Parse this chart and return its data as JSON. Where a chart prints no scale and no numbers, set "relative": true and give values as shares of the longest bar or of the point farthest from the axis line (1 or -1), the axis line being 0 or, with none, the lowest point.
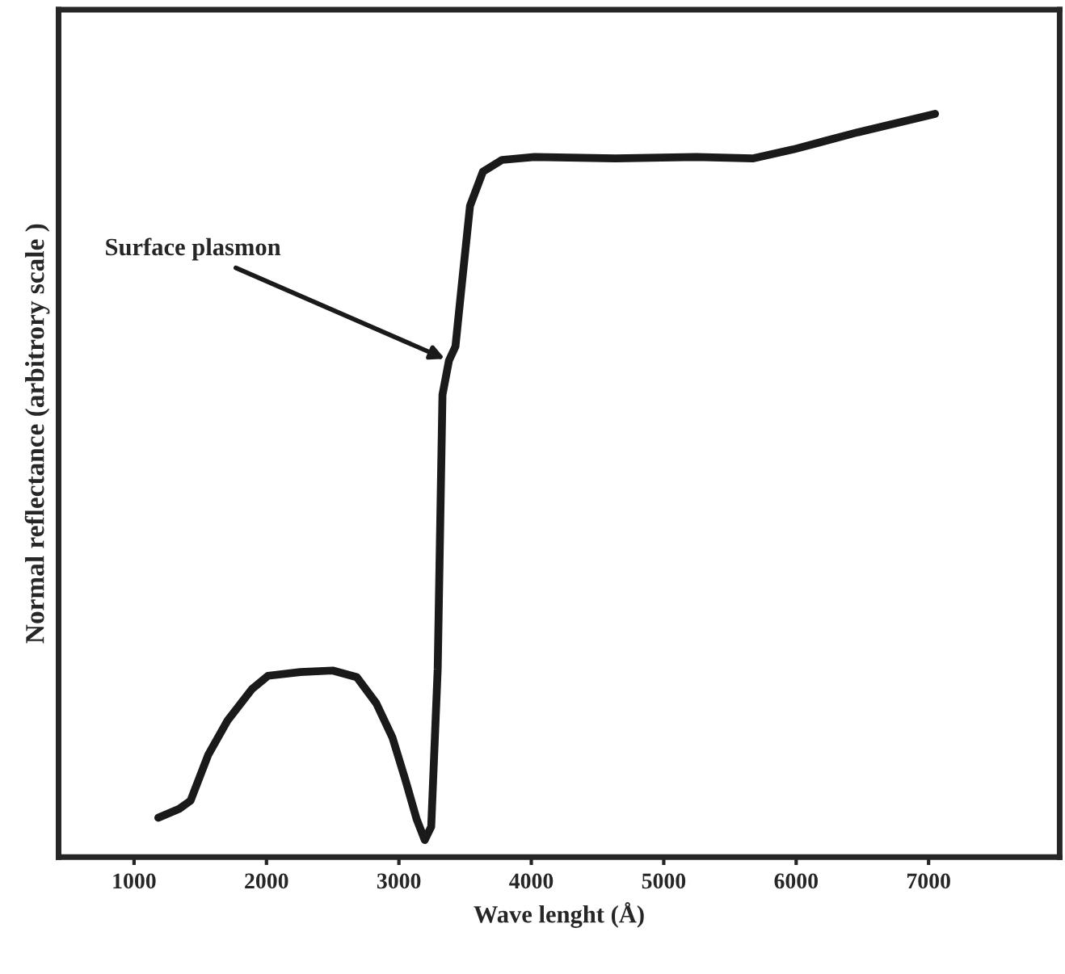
{
  "chart_data": {
    "type": "line",
    "relative": true,
    "xlabel": "Wave lenght (Å)",
    "ylabel": "Normal reflectance (arbitrory scale )",
    "xlim": [
      430,
      7990
    ],
    "xticks": [
      1000,
      2000,
      3000,
      4000,
      5000,
      6000,
      7000
    ],
    "grid": false,
    "legend": false,
    "series": [
      {
        "color": "#1a1a1a",
        "x": [
          1183,
          1341,
          1427,
          1561,
          1707,
          1890,
          2012,
          2256,
          2500,
          2683,
          2829,
          2951,
          3049,
          3134,
          3195,
          3244,
          3293,
          3329,
          3378,
          3427,
          3476,
          3537,
          3634,
          3780,
          4024,
          4634,
          5244,
          5671,
          5976,
          6463,
          7049
        ],
        "values": [
          0.053,
          0.065,
          0.076,
          0.138,
          0.184,
          0.226,
          0.244,
          0.249,
          0.251,
          0.242,
          0.207,
          0.161,
          0.104,
          0.051,
          0.023,
          0.041,
          0.253,
          0.622,
          0.668,
          0.687,
          0.772,
          0.876,
          0.922,
          0.938,
          0.942,
          0.94,
          0.942,
          0.94,
          0.952,
          0.975,
          1.0
        ]
      }
    ],
    "annotations": [
      {
        "text": "Surface plasmon",
        "x": 3378,
        "y": 0.668
      }
    ]
  }
}
